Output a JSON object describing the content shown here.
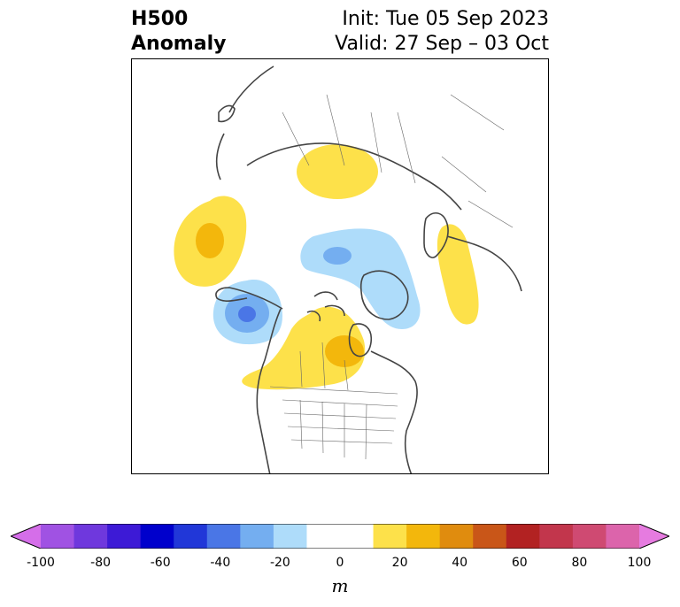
{
  "header": {
    "title_line1": "H500",
    "title_line2": "Anomaly",
    "init_label": "Init: Tue 05 Sep 2023",
    "valid_label": "Valid: 27 Sep – 03 Oct"
  },
  "colorbar": {
    "units": "m",
    "ticks": [
      "-100",
      "-80",
      "-60",
      "-40",
      "-20",
      "0",
      "20",
      "40",
      "60",
      "80",
      "100"
    ],
    "colors": [
      "#d56ee9",
      "#a052e3",
      "#6f38dd",
      "#3d1ad6",
      "#0000cc",
      "#2137d8",
      "#4a76e6",
      "#74aef0",
      "#aedcfa",
      "#ffffff",
      "#ffffff",
      "#fde14a",
      "#f3b70c",
      "#e08c0e",
      "#c95618",
      "#b22222",
      "#c2364c",
      "#cf4a72",
      "#dc64ab",
      "#e67be0"
    ],
    "extend": "both"
  },
  "map": {
    "projection": "north-polar-stereographic",
    "anomaly_colors": {
      "light_yellow": "#fde14a",
      "gold": "#f3b70c",
      "light_blue": "#aedcfa",
      "mid_blue": "#74aef0",
      "blue": "#4a76e6"
    }
  }
}
